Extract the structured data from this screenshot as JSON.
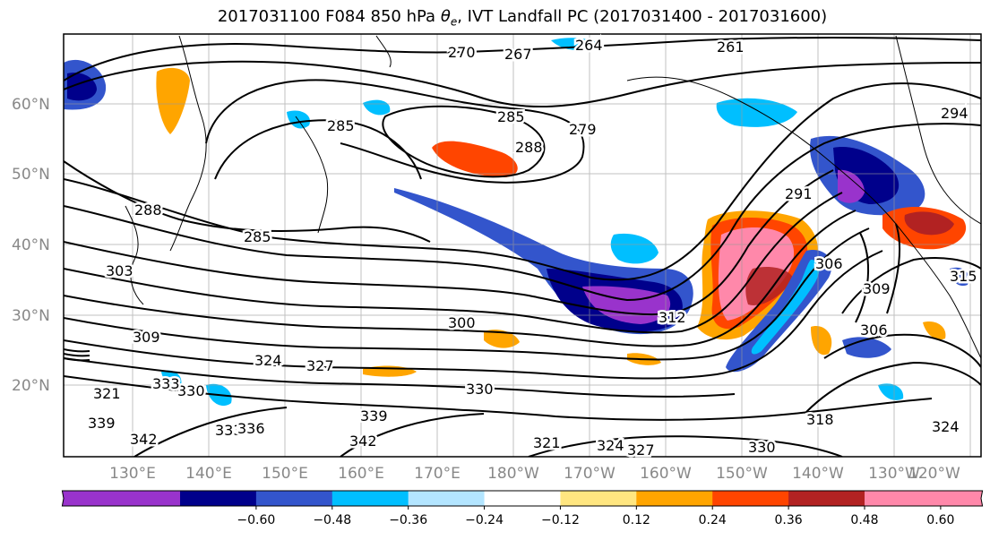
{
  "title_main": "2017031100 F084 850 hPa ",
  "title_symbol": "θ",
  "title_sub": "e",
  "title_rest": ", IVT Landfall PC (2017031400 - 2017031600)",
  "latitude_labels": [
    "60°N",
    "50°N",
    "40°N",
    "30°N",
    "20°N"
  ],
  "longitude_labels": [
    "130°E",
    "140°E",
    "150°E",
    "160°E",
    "170°E",
    "180°W",
    "170°W",
    "160°W",
    "150°W",
    "140°W",
    "130°W",
    "120°W"
  ],
  "contour_labels": [
    "270",
    "267",
    "264",
    "261",
    "285",
    "288",
    "279",
    "285",
    "288",
    "285",
    "294",
    "291",
    "309",
    "306",
    "309",
    "315",
    "300",
    "312",
    "303",
    "306",
    "324",
    "327",
    "330",
    "333",
    "321",
    "330",
    "339",
    "342",
    "333",
    "336",
    "339",
    "342",
    "321",
    "324",
    "327",
    "330",
    "318",
    "324"
  ],
  "colorbar": {
    "ticks": [
      "−0.60",
      "−0.48",
      "−0.36",
      "−0.24",
      "−0.12",
      "0.12",
      "0.24",
      "0.36",
      "0.48",
      "0.60"
    ],
    "colors": [
      "#9933cc",
      "#00008b",
      "#3355cc",
      "#00bfff",
      "#b3e5ff",
      "#ffffff",
      "#ffe680",
      "#ffa500",
      "#ff4500",
      "#b22222",
      "#ff88aa"
    ]
  }
}
